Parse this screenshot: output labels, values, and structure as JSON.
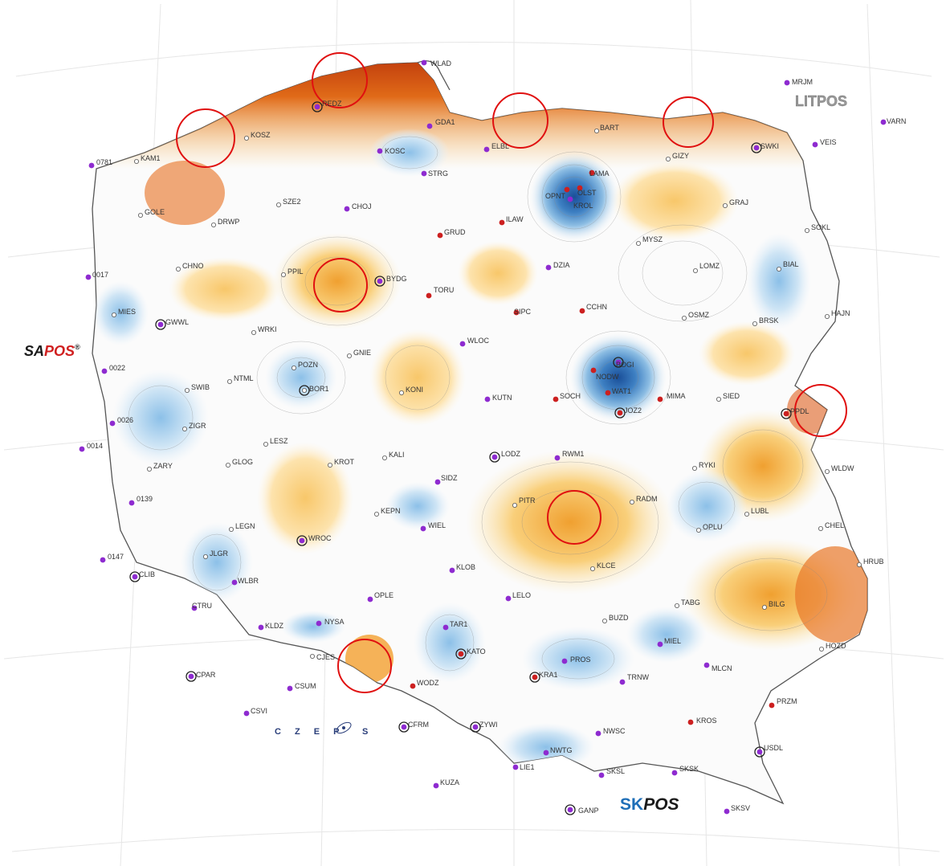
{
  "map": {
    "stations": [
      {
        "code": "WLAD",
        "type": "foreign"
      },
      {
        "code": "MRJM",
        "type": "foreign"
      },
      {
        "code": "VARN",
        "type": "foreign"
      },
      {
        "code": "VEIS",
        "type": "foreign"
      },
      {
        "code": "0781",
        "type": "foreign"
      },
      {
        "code": "0017",
        "type": "foreign"
      },
      {
        "code": "0022",
        "type": "foreign"
      },
      {
        "code": "0026",
        "type": "foreign"
      },
      {
        "code": "0014",
        "type": "foreign"
      },
      {
        "code": "0139",
        "type": "foreign"
      },
      {
        "code": "0147",
        "type": "foreign"
      },
      {
        "code": "CLIB",
        "type": "foreign"
      },
      {
        "code": "CTRU",
        "type": "foreign"
      },
      {
        "code": "CPAR",
        "type": "foreign"
      },
      {
        "code": "CSUM",
        "type": "foreign"
      },
      {
        "code": "CSVI",
        "type": "foreign"
      },
      {
        "code": "CFRM",
        "type": "foreign"
      },
      {
        "code": "KUZA",
        "type": "foreign"
      },
      {
        "code": "GANP",
        "type": "foreign"
      },
      {
        "code": "SKSV",
        "type": "foreign"
      },
      {
        "code": "SKSL",
        "type": "foreign"
      },
      {
        "code": "SKSK",
        "type": "foreign"
      },
      {
        "code": "NWTG",
        "type": "foreign"
      },
      {
        "code": "LIE1",
        "type": "foreign"
      },
      {
        "code": "NWSC",
        "type": "foreign"
      },
      {
        "code": "ZYWI",
        "type": "foreign"
      },
      {
        "code": "USDL",
        "type": "foreign"
      },
      {
        "code": "SWKI",
        "type": "foreign"
      },
      {
        "code": "REDZ",
        "type": "astgpos"
      },
      {
        "code": "GDA1",
        "type": "astgpos"
      },
      {
        "code": "KOSC",
        "type": "astgpos"
      },
      {
        "code": "STRG",
        "type": "astgpos"
      },
      {
        "code": "ELBL",
        "type": "astgpos"
      },
      {
        "code": "CHOJ",
        "type": "astgpos"
      },
      {
        "code": "BYDG",
        "type": "astgpos"
      },
      {
        "code": "DZIA",
        "type": "astgpos"
      },
      {
        "code": "WLOC",
        "type": "astgpos"
      },
      {
        "code": "KUTN",
        "type": "astgpos"
      },
      {
        "code": "LODZ",
        "type": "astgpos"
      },
      {
        "code": "RWM1",
        "type": "astgpos"
      },
      {
        "code": "SIDZ",
        "type": "astgpos"
      },
      {
        "code": "WIEL",
        "type": "astgpos"
      },
      {
        "code": "WROC",
        "type": "astgpos"
      },
      {
        "code": "WLBR",
        "type": "astgpos"
      },
      {
        "code": "GWWL",
        "type": "astgpos"
      },
      {
        "code": "KLOB",
        "type": "astgpos"
      },
      {
        "code": "LELO",
        "type": "astgpos"
      },
      {
        "code": "OPLE",
        "type": "astgpos"
      },
      {
        "code": "NYSA",
        "type": "astgpos"
      },
      {
        "code": "KLDZ",
        "type": "astgpos"
      },
      {
        "code": "TAR1",
        "type": "astgpos"
      },
      {
        "code": "PROS",
        "type": "astgpos"
      },
      {
        "code": "TRNW",
        "type": "astgpos"
      },
      {
        "code": "MIEL",
        "type": "astgpos"
      },
      {
        "code": "MLCN",
        "type": "astgpos"
      },
      {
        "code": "BOGI",
        "type": "astgpos"
      },
      {
        "code": "KROL",
        "type": "astgpos"
      },
      {
        "code": "LAMA",
        "type": "asg"
      },
      {
        "code": "OLST",
        "type": "asg"
      },
      {
        "code": "OPNT",
        "type": "asg"
      },
      {
        "code": "GRUD",
        "type": "asg"
      },
      {
        "code": "ILAW",
        "type": "asg"
      },
      {
        "code": "TORU",
        "type": "asg"
      },
      {
        "code": "SIPC",
        "type": "asg"
      },
      {
        "code": "CCHN",
        "type": "asg"
      },
      {
        "code": "NODW",
        "type": "asg"
      },
      {
        "code": "WAT1",
        "type": "asg"
      },
      {
        "code": "SOCH",
        "type": "asg"
      },
      {
        "code": "MIMA",
        "type": "asg"
      },
      {
        "code": "JOZ2",
        "type": "asg"
      },
      {
        "code": "PPDL",
        "type": "asg"
      },
      {
        "code": "KATO",
        "type": "asg"
      },
      {
        "code": "KRA1",
        "type": "asg"
      },
      {
        "code": "WODZ",
        "type": "asg"
      },
      {
        "code": "KROS",
        "type": "asg"
      },
      {
        "code": "PRZM",
        "type": "asg"
      },
      {
        "code": "BART",
        "type": "other"
      },
      {
        "code": "GIZY",
        "type": "other"
      },
      {
        "code": "GRAJ",
        "type": "other"
      },
      {
        "code": "SOKL",
        "type": "other"
      },
      {
        "code": "MYSZ",
        "type": "other"
      },
      {
        "code": "LOMZ",
        "type": "other"
      },
      {
        "code": "BIAL",
        "type": "other"
      },
      {
        "code": "OSMZ",
        "type": "other"
      },
      {
        "code": "BRSK",
        "type": "other"
      },
      {
        "code": "HAJN",
        "type": "other"
      },
      {
        "code": "SIED",
        "type": "other"
      },
      {
        "code": "WLDW",
        "type": "other"
      },
      {
        "code": "RYKI",
        "type": "other"
      },
      {
        "code": "RADM",
        "type": "other"
      },
      {
        "code": "LUBL",
        "type": "other"
      },
      {
        "code": "OPLU",
        "type": "other"
      },
      {
        "code": "CHEL",
        "type": "other"
      },
      {
        "code": "HRUB",
        "type": "other"
      },
      {
        "code": "BILG",
        "type": "other"
      },
      {
        "code": "TABG",
        "type": "other"
      },
      {
        "code": "KLCE",
        "type": "other"
      },
      {
        "code": "BUZD",
        "type": "other"
      },
      {
        "code": "HOZD",
        "type": "other"
      },
      {
        "code": "PITR",
        "type": "other"
      },
      {
        "code": "KOSZ",
        "type": "other"
      },
      {
        "code": "KAM1",
        "type": "other"
      },
      {
        "code": "GOLE",
        "type": "other"
      },
      {
        "code": "SZE2",
        "type": "other"
      },
      {
        "code": "DRWP",
        "type": "other"
      },
      {
        "code": "CHNO",
        "type": "other"
      },
      {
        "code": "PPIL",
        "type": "other"
      },
      {
        "code": "MIES",
        "type": "other"
      },
      {
        "code": "WRKI",
        "type": "other"
      },
      {
        "code": "GNIE",
        "type": "other"
      },
      {
        "code": "POZN",
        "type": "other"
      },
      {
        "code": "BOR1",
        "type": "other"
      },
      {
        "code": "NTML",
        "type": "other"
      },
      {
        "code": "SWIB",
        "type": "other"
      },
      {
        "code": "KONI",
        "type": "other"
      },
      {
        "code": "ZIGR",
        "type": "other"
      },
      {
        "code": "LESZ",
        "type": "other"
      },
      {
        "code": "ZARY",
        "type": "other"
      },
      {
        "code": "GLOG",
        "type": "other"
      },
      {
        "code": "KROT",
        "type": "other"
      },
      {
        "code": "KALI",
        "type": "other"
      },
      {
        "code": "KEPN",
        "type": "other"
      },
      {
        "code": "LEGN",
        "type": "other"
      },
      {
        "code": "JLGR",
        "type": "other"
      },
      {
        "code": "CJES",
        "type": "other"
      }
    ],
    "networks": {
      "sapos": {
        "part1": "SA",
        "part2": "POS",
        "reg": "®"
      },
      "litpos": "LITPOS",
      "czepos": "C Z E P",
      "czepos_tail": "S",
      "skpos": {
        "part1": "SK",
        "part2": "POS"
      }
    },
    "colors": {
      "astgpos": "#8e2bd0",
      "asg": "#cc2020",
      "other": "#ffffff",
      "highlight": "#e01010",
      "blue_dark": "#1f5ea8",
      "blue_light": "#cfe5f5",
      "orange_dark": "#d84a10",
      "orange_light": "#fde8b8",
      "sapos_red": "#d02020",
      "sk_blue": "#1f6fb8"
    }
  }
}
